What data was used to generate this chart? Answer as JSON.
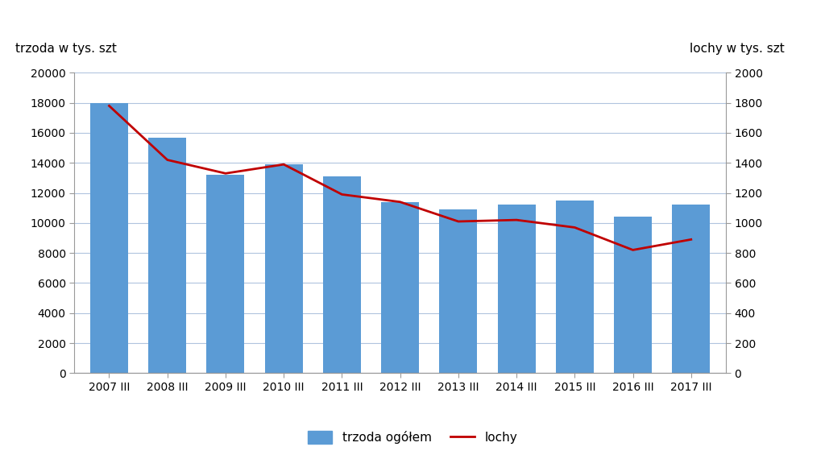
{
  "categories": [
    "2007 III",
    "2008 III",
    "2009 III",
    "2010 III",
    "2011 III",
    "2012 III",
    "2013 III",
    "2014 III",
    "2015 III",
    "2016 III",
    "2017 III"
  ],
  "bar_values": [
    18000,
    15700,
    13200,
    13900,
    13100,
    11400,
    10900,
    11200,
    11500,
    10400,
    11200
  ],
  "line_values": [
    1780,
    1420,
    1330,
    1390,
    1190,
    1140,
    1010,
    1020,
    970,
    820,
    890
  ],
  "bar_color": "#5b9bd5",
  "line_color": "#c00000",
  "left_ylabel": "trzoda w tys. szt",
  "right_ylabel": "lochy w tys. szt",
  "left_ylim": [
    0,
    20000
  ],
  "right_ylim": [
    0,
    2000
  ],
  "left_yticks": [
    0,
    2000,
    4000,
    6000,
    8000,
    10000,
    12000,
    14000,
    16000,
    18000,
    20000
  ],
  "right_yticks": [
    0,
    200,
    400,
    600,
    800,
    1000,
    1200,
    1400,
    1600,
    1800,
    2000
  ],
  "legend_bar_label": "trzoda ogółem",
  "legend_line_label": "lochy",
  "background_color": "#ffffff",
  "grid_color": "#b0c4de",
  "bar_width": 0.65,
  "spine_color": "#999999",
  "tick_label_fontsize": 10,
  "axis_label_fontsize": 11
}
